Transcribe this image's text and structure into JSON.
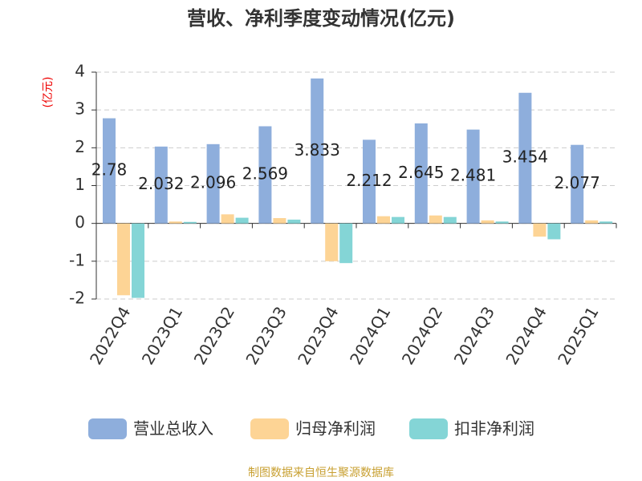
{
  "chart_data": {
    "type": "bar",
    "title": "营收、净利季度变动情况(亿元)",
    "y_label": "(亿元)",
    "source": "制图数据来自恒生聚源数据库",
    "categories": [
      "2022Q4",
      "2023Q1",
      "2023Q2",
      "2023Q3",
      "2023Q4",
      "2024Q1",
      "2024Q2",
      "2024Q3",
      "2024Q4",
      "2025Q1"
    ],
    "series": [
      {
        "name": "营业总收入",
        "color": "#8eaedc",
        "values": [
          2.78,
          2.032,
          2.096,
          2.569,
          3.833,
          2.212,
          2.645,
          2.481,
          3.454,
          2.077
        ],
        "show_labels": true
      },
      {
        "name": "归母净利润",
        "color": "#fdd495",
        "values": [
          -1.9,
          0.05,
          0.24,
          0.14,
          -1.0,
          0.19,
          0.21,
          0.08,
          -0.35,
          0.08
        ]
      },
      {
        "name": "扣非净利润",
        "color": "#84d5d6",
        "values": [
          -1.97,
          0.04,
          0.15,
          0.1,
          -1.05,
          0.17,
          0.17,
          0.05,
          -0.42,
          0.05
        ]
      }
    ],
    "ylim": [
      -2,
      4
    ],
    "yticks": [
      -2,
      -1,
      0,
      1,
      2,
      3,
      4
    ],
    "grid": true,
    "legend": "bottom"
  }
}
